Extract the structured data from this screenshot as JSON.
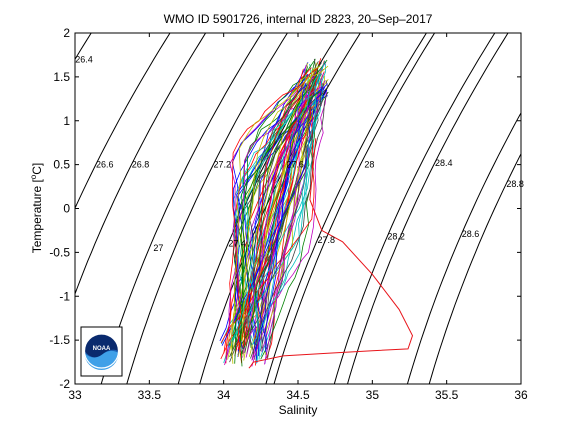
{
  "chart_data": {
    "type": "scatter",
    "title": "WMO ID 5901726, internal ID 2823, 20–Sep–2017",
    "xlabel": "Salinity",
    "ylabel": "Temperature [°C]",
    "ylabel_parts": {
      "pre": "Temperature [",
      "deg": "o",
      "post": "C]"
    },
    "xlim": [
      33,
      36
    ],
    "ylim": [
      -2,
      2
    ],
    "x_ticks": [
      33,
      33.5,
      34,
      34.5,
      35,
      35.5,
      36
    ],
    "x_tick_labels": [
      "33",
      "33.5",
      "34",
      "34.5",
      "35",
      "35.5",
      "36"
    ],
    "y_ticks": [
      -2,
      -1.5,
      -1,
      -0.5,
      0,
      0.5,
      1,
      1.5,
      2
    ],
    "y_tick_labels": [
      "-2",
      "-1.5",
      "-1",
      "-0.5",
      "0",
      "0.5",
      "1",
      "1.5",
      "2"
    ],
    "density_contours": [
      {
        "label": "26.4",
        "x": 33.0,
        "y": 1.7
      },
      {
        "label": "26.6",
        "x": 33.14,
        "y": 0.5
      },
      {
        "label": "26.8",
        "x": 33.38,
        "y": 0.5
      },
      {
        "label": "27",
        "x": 33.5,
        "y": -0.45
      },
      {
        "label": "27.2",
        "x": 33.93,
        "y": 0.5
      },
      {
        "label": "27.4",
        "x": 34.03,
        "y": -0.4
      },
      {
        "label": "27.6",
        "x": 34.42,
        "y": 0.5
      },
      {
        "label": "27.8",
        "x": 34.63,
        "y": -0.36
      },
      {
        "label": "28",
        "x": 34.92,
        "y": 0.5
      },
      {
        "label": "28.2",
        "x": 35.1,
        "y": -0.32
      },
      {
        "label": "28.4",
        "x": 35.42,
        "y": 0.52
      },
      {
        "label": "28.6",
        "x": 35.6,
        "y": -0.29
      },
      {
        "label": "28.8",
        "x": 35.9,
        "y": 0.28
      }
    ],
    "profile_envelope": {
      "surface": {
        "salinity": [
          33.98,
          34.3
        ],
        "temperature": [
          -1.8,
          -1.5
        ]
      },
      "mid": {
        "salinity": [
          34.05,
          34.6
        ],
        "temperature": [
          -0.5,
          0.7
        ]
      },
      "deep": {
        "salinity": [
          34.55,
          34.7
        ],
        "temperature": [
          1.3,
          1.7
        ]
      }
    },
    "highlight_profile": {
      "color": "#e8141a",
      "salinity": [
        34.62,
        34.58,
        34.66,
        34.8,
        35.0,
        35.18,
        35.27,
        35.24,
        35.0,
        34.7,
        34.4,
        34.2,
        34.18,
        34.17
      ],
      "temperature": [
        0.8,
        0.1,
        -0.25,
        -0.38,
        -0.75,
        -1.15,
        -1.45,
        -1.6,
        -1.62,
        -1.65,
        -1.68,
        -1.75,
        -1.8,
        -1.82
      ]
    },
    "series_colors": [
      "#0000ff",
      "#008000",
      "#ff0000",
      "#00bfbf",
      "#bf00bf",
      "#bfbf00",
      "#404040"
    ],
    "grid": false,
    "legend": "none"
  },
  "logo": {
    "text": "NOAA"
  }
}
